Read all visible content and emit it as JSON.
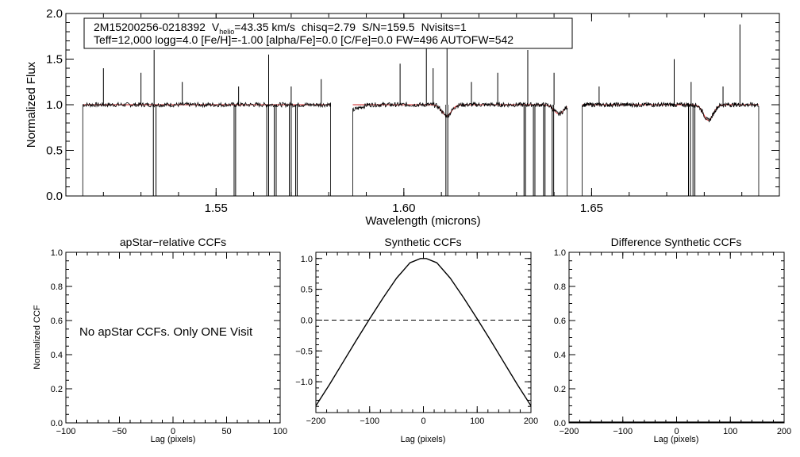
{
  "info_box": {
    "star_id": "2M15200256-0218392",
    "vhelio_prefix": "V",
    "vhelio_sub": "helio",
    "vhelio_value": "=43.35 km/s",
    "chisq": "chisq=2.79",
    "snr": "S/N=159.5",
    "nvisits": "Nvisits=1",
    "line2": "Teff=12,000 logg=4.0 [Fe/H]=-1.00 [alpha/Fe]=0.0 [C/Fe]=0.0 FW=496 AUTOFW=542"
  },
  "chart_data": [
    {
      "id": "spectrum",
      "type": "line",
      "title": "",
      "xlabel": "Wavelength (microns)",
      "ylabel": "Normalized Flux",
      "xlim": [
        1.51,
        1.7
      ],
      "ylim": [
        0.0,
        2.0
      ],
      "xticks": [
        "1.55",
        "1.60",
        "1.65"
      ],
      "xtick_values": [
        1.55,
        1.6,
        1.65
      ],
      "yticks": [
        "0.0",
        "0.5",
        "1.0",
        "1.5",
        "2.0"
      ],
      "ytick_values": [
        0.0,
        0.5,
        1.0,
        1.5,
        2.0
      ],
      "chips": [
        [
          1.5145,
          1.5805
        ],
        [
          1.5864,
          1.6435
        ],
        [
          1.6475,
          1.6945
        ]
      ],
      "series": [
        {
          "name": "observed",
          "color": "#000000"
        },
        {
          "name": "model",
          "color": "#cc2222"
        }
      ],
      "absorption_features": [
        {
          "x": 1.6114,
          "depth": 0.12
        },
        {
          "x": 1.6413,
          "depth": 0.1
        },
        {
          "x": 1.6811,
          "depth": 0.17
        }
      ],
      "emission_spikes": [
        {
          "x": 1.52,
          "y": 1.4
        },
        {
          "x": 1.53,
          "y": 1.35
        },
        {
          "x": 1.5335,
          "y": 1.6
        },
        {
          "x": 1.541,
          "y": 1.25
        },
        {
          "x": 1.556,
          "y": 1.2
        },
        {
          "x": 1.564,
          "y": 1.55
        },
        {
          "x": 1.57,
          "y": 1.2
        },
        {
          "x": 1.578,
          "y": 1.28
        },
        {
          "x": 1.599,
          "y": 1.45
        },
        {
          "x": 1.606,
          "y": 1.65
        },
        {
          "x": 1.6078,
          "y": 1.4
        },
        {
          "x": 1.6115,
          "y": 1.8
        },
        {
          "x": 1.618,
          "y": 1.25
        },
        {
          "x": 1.625,
          "y": 1.35
        },
        {
          "x": 1.633,
          "y": 1.6
        },
        {
          "x": 1.64,
          "y": 1.35
        },
        {
          "x": 1.652,
          "y": 1.2
        },
        {
          "x": 1.672,
          "y": 1.5
        },
        {
          "x": 1.6765,
          "y": 1.25
        },
        {
          "x": 1.685,
          "y": 1.2
        },
        {
          "x": 1.6895,
          "y": 1.88
        }
      ],
      "dropouts": [
        {
          "x1": 1.5333,
          "x2": 1.534
        },
        {
          "x1": 1.5548,
          "x2": 1.5552
        },
        {
          "x1": 1.5635,
          "x2": 1.564
        },
        {
          "x1": 1.5655,
          "x2": 1.566
        },
        {
          "x1": 1.5695,
          "x2": 1.57
        },
        {
          "x1": 1.5712,
          "x2": 1.5716
        },
        {
          "x1": 1.6112,
          "x2": 1.6117
        },
        {
          "x1": 1.632,
          "x2": 1.6324
        },
        {
          "x1": 1.6345,
          "x2": 1.6349
        },
        {
          "x1": 1.6372,
          "x2": 1.6376
        },
        {
          "x1": 1.6395,
          "x2": 1.6399
        },
        {
          "x1": 1.6758,
          "x2": 1.6763
        },
        {
          "x1": 1.677,
          "x2": 1.6775
        }
      ]
    },
    {
      "id": "apstar-ccf",
      "type": "line",
      "title": "apStar−relative CCFs",
      "xlabel": "Lag (pixels)",
      "ylabel": "Normalized CCF",
      "xlim": [
        -100,
        100
      ],
      "ylim": [
        0.0,
        1.0
      ],
      "xticks": [
        "−100",
        "−50",
        "0",
        "50",
        "100"
      ],
      "xtick_values": [
        -100,
        -50,
        0,
        50,
        100
      ],
      "yticks": [
        "0.0",
        "0.2",
        "0.4",
        "0.6",
        "0.8",
        "1.0"
      ],
      "ytick_values": [
        0.0,
        0.2,
        0.4,
        0.6,
        0.8,
        1.0
      ],
      "annotation": "No apStar CCFs.  Only ONE Visit",
      "series": []
    },
    {
      "id": "synthetic-ccf",
      "type": "line",
      "title": "Synthetic CCFs",
      "xlabel": "Lag (pixels)",
      "ylabel": "",
      "xlim": [
        -200,
        200
      ],
      "ylim": [
        -1.5,
        1.1
      ],
      "xticks": [
        "−200",
        "−100",
        "0",
        "100",
        "200"
      ],
      "xtick_values": [
        -200,
        -100,
        0,
        100,
        200
      ],
      "yticks": [
        "−1.0",
        "−0.5",
        "0.0",
        "0.5",
        "1.0"
      ],
      "ytick_values": [
        -1.0,
        -0.5,
        0.0,
        0.5,
        1.0
      ],
      "zero_line": 0.0,
      "series": [
        {
          "name": "synthetic ccf",
          "x": [
            -200,
            -175,
            -150,
            -125,
            -100,
            -75,
            -50,
            -25,
            -5,
            0,
            5,
            25,
            50,
            75,
            100,
            125,
            150,
            175,
            200
          ],
          "y": [
            -1.39,
            -1.05,
            -0.69,
            -0.33,
            0.02,
            0.36,
            0.68,
            0.93,
            1.0,
            1.0,
            1.0,
            0.93,
            0.68,
            0.36,
            0.02,
            -0.33,
            -0.69,
            -1.05,
            -1.39
          ]
        }
      ]
    },
    {
      "id": "difference-ccf",
      "type": "line",
      "title": "Difference Synthetic CCFs",
      "xlabel": "Lag (pixels)",
      "ylabel": "",
      "xlim": [
        -200,
        200
      ],
      "ylim": [
        0.0,
        1.0
      ],
      "xticks": [
        "−200",
        "−100",
        "0",
        "100",
        "200"
      ],
      "xtick_values": [
        -200,
        -100,
        0,
        100,
        200
      ],
      "yticks": [
        "0.0",
        "0.2",
        "0.4",
        "0.6",
        "0.8",
        "1.0"
      ],
      "ytick_values": [
        0.0,
        0.2,
        0.4,
        0.6,
        0.8,
        1.0
      ],
      "series": [
        {
          "name": "difference",
          "x": [
            -200,
            200
          ],
          "y": [
            0.0,
            0.0
          ]
        }
      ]
    }
  ]
}
